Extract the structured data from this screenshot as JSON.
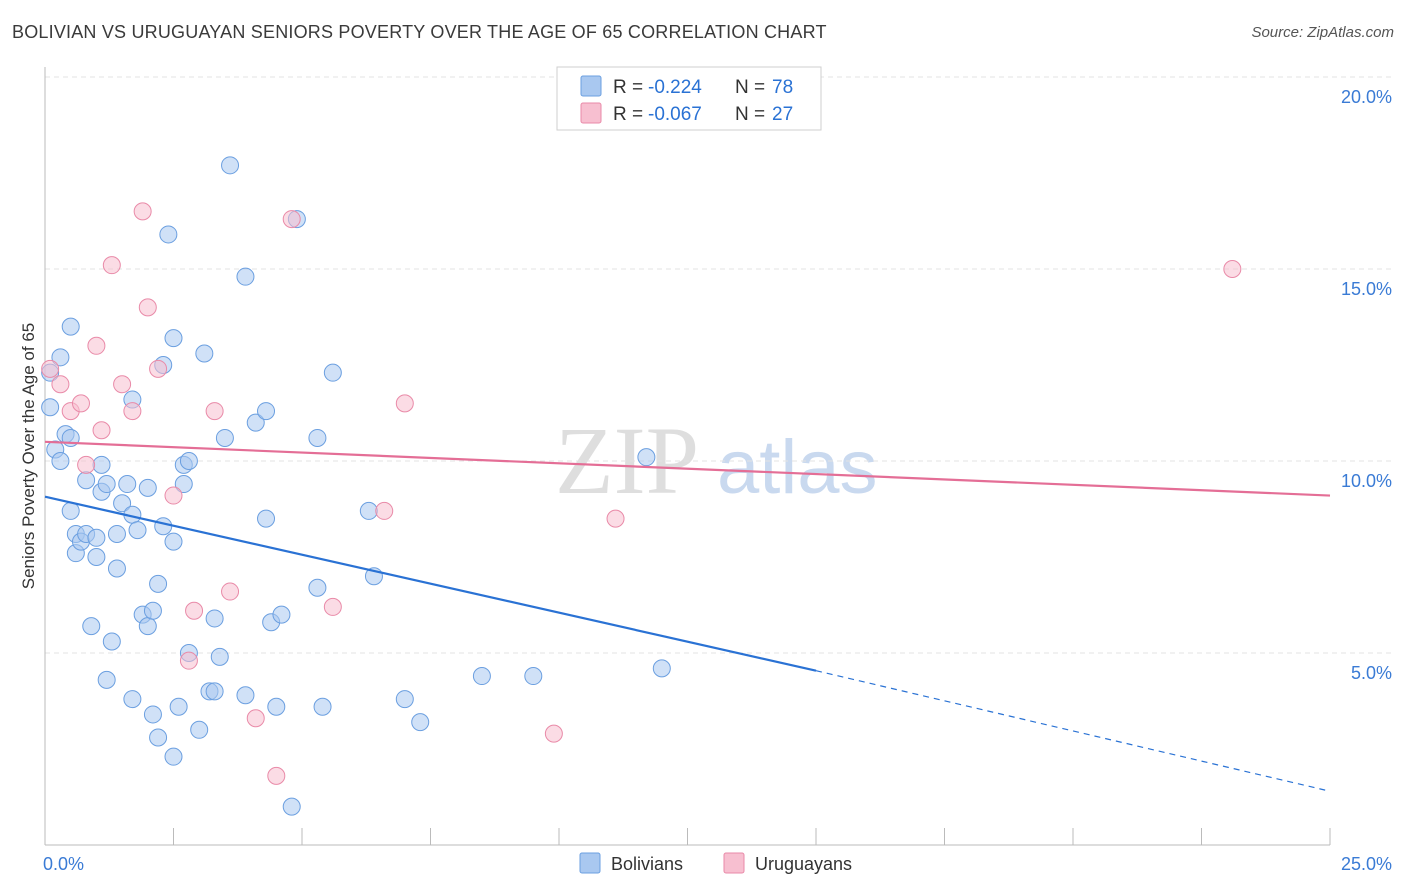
{
  "title": "BOLIVIAN VS URUGUAYAN SENIORS POVERTY OVER THE AGE OF 65 CORRELATION CHART",
  "source": "Source: ZipAtlas.com",
  "watermark": {
    "zip": "ZIP",
    "atlas": "atlas"
  },
  "legend_box": [
    {
      "r_label": "R = ",
      "r_value": "-0.224",
      "n_label": "N = ",
      "n_value": "78",
      "color": "#a9c8f0",
      "stroke": "#6b9fe0"
    },
    {
      "r_label": "R = ",
      "r_value": "-0.067",
      "n_label": "N = ",
      "n_value": "27",
      "color": "#f7bfd0",
      "stroke": "#e98aa8"
    }
  ],
  "bottom_legend": [
    {
      "label": "Bolivians",
      "color": "#a9c8f0",
      "stroke": "#6b9fe0"
    },
    {
      "label": "Uruguayans",
      "color": "#f7bfd0",
      "stroke": "#e98aa8"
    }
  ],
  "chart_data": {
    "type": "scatter",
    "title": "BOLIVIAN VS URUGUAYAN SENIORS POVERTY OVER THE AGE OF 65 CORRELATION CHART",
    "xlabel": "",
    "ylabel": "Seniors Poverty Over the Age of 65",
    "xlim": [
      0,
      25
    ],
    "ylim": [
      0,
      20
    ],
    "x_tick_labels": [
      "0.0%",
      "25.0%"
    ],
    "y_ticks": [
      5,
      10,
      15,
      20
    ],
    "y_tick_labels": [
      "5.0%",
      "10.0%",
      "15.0%",
      "20.0%"
    ],
    "x_minor_ticks": [
      2.5,
      5,
      7.5,
      10,
      12.5,
      15,
      17.5,
      20,
      22.5,
      25
    ],
    "grid": true,
    "legend_position": "top-center",
    "series": [
      {
        "name": "Bolivians",
        "color": "#a9c8f0",
        "stroke": "#6b9fe0",
        "line_color": "#2a72d4",
        "trend": {
          "x": [
            0,
            15
          ],
          "y": [
            9.07,
            4.54
          ],
          "dashed_to": [
            25,
            1.4
          ]
        },
        "points": [
          [
            0.1,
            12.3
          ],
          [
            0.1,
            11.4
          ],
          [
            0.2,
            10.3
          ],
          [
            0.3,
            12.7
          ],
          [
            0.3,
            10.0
          ],
          [
            0.4,
            10.7
          ],
          [
            0.5,
            10.6
          ],
          [
            0.5,
            13.5
          ],
          [
            0.5,
            8.7
          ],
          [
            0.6,
            7.6
          ],
          [
            0.6,
            8.1
          ],
          [
            0.7,
            7.9
          ],
          [
            0.8,
            9.5
          ],
          [
            0.8,
            8.1
          ],
          [
            0.9,
            5.7
          ],
          [
            1.0,
            8.0
          ],
          [
            1.0,
            7.5
          ],
          [
            1.1,
            9.9
          ],
          [
            1.1,
            9.2
          ],
          [
            1.2,
            9.4
          ],
          [
            1.2,
            4.3
          ],
          [
            1.3,
            5.3
          ],
          [
            1.4,
            8.1
          ],
          [
            1.4,
            7.2
          ],
          [
            1.5,
            8.9
          ],
          [
            1.6,
            9.4
          ],
          [
            1.7,
            11.6
          ],
          [
            1.7,
            3.8
          ],
          [
            1.7,
            8.6
          ],
          [
            1.8,
            8.2
          ],
          [
            1.9,
            6.0
          ],
          [
            2.0,
            5.7
          ],
          [
            2.0,
            9.3
          ],
          [
            2.1,
            3.4
          ],
          [
            2.1,
            6.1
          ],
          [
            2.2,
            2.8
          ],
          [
            2.2,
            6.8
          ],
          [
            2.3,
            8.3
          ],
          [
            2.3,
            12.5
          ],
          [
            2.4,
            15.9
          ],
          [
            2.5,
            7.9
          ],
          [
            2.5,
            2.3
          ],
          [
            2.5,
            13.2
          ],
          [
            2.6,
            3.6
          ],
          [
            2.7,
            9.9
          ],
          [
            2.7,
            9.4
          ],
          [
            2.8,
            10.0
          ],
          [
            2.8,
            5.0
          ],
          [
            3.0,
            3.0
          ],
          [
            3.1,
            12.8
          ],
          [
            3.2,
            4.0
          ],
          [
            3.3,
            5.9
          ],
          [
            3.3,
            4.0
          ],
          [
            3.4,
            4.9
          ],
          [
            3.5,
            10.6
          ],
          [
            3.6,
            17.7
          ],
          [
            3.9,
            14.8
          ],
          [
            3.9,
            3.9
          ],
          [
            4.1,
            11.0
          ],
          [
            4.3,
            11.3
          ],
          [
            4.3,
            8.5
          ],
          [
            4.4,
            5.8
          ],
          [
            4.5,
            3.6
          ],
          [
            4.6,
            6.0
          ],
          [
            4.8,
            1.0
          ],
          [
            4.9,
            16.3
          ],
          [
            5.3,
            10.6
          ],
          [
            5.3,
            6.7
          ],
          [
            5.4,
            3.6
          ],
          [
            5.6,
            12.3
          ],
          [
            6.3,
            8.7
          ],
          [
            6.4,
            7.0
          ],
          [
            7.0,
            3.8
          ],
          [
            7.3,
            3.2
          ],
          [
            8.5,
            4.4
          ],
          [
            9.5,
            4.4
          ],
          [
            11.7,
            10.1
          ],
          [
            12.0,
            4.6
          ]
        ]
      },
      {
        "name": "Uruguayans",
        "color": "#f7bfd0",
        "stroke": "#e98aa8",
        "line_color": "#e46e96",
        "trend": {
          "x": [
            0,
            25
          ],
          "y": [
            10.5,
            9.1
          ]
        },
        "points": [
          [
            0.1,
            12.4
          ],
          [
            0.3,
            12.0
          ],
          [
            0.5,
            11.3
          ],
          [
            0.7,
            11.5
          ],
          [
            0.8,
            9.9
          ],
          [
            1.0,
            13.0
          ],
          [
            1.1,
            10.8
          ],
          [
            1.3,
            15.1
          ],
          [
            1.5,
            12.0
          ],
          [
            1.7,
            11.3
          ],
          [
            1.9,
            16.5
          ],
          [
            2.0,
            14.0
          ],
          [
            2.2,
            12.4
          ],
          [
            2.5,
            9.1
          ],
          [
            2.8,
            4.8
          ],
          [
            2.9,
            6.1
          ],
          [
            3.3,
            11.3
          ],
          [
            3.6,
            6.6
          ],
          [
            4.1,
            3.3
          ],
          [
            4.5,
            1.8
          ],
          [
            4.8,
            16.3
          ],
          [
            5.6,
            6.2
          ],
          [
            6.6,
            8.7
          ],
          [
            7.0,
            11.5
          ],
          [
            9.9,
            2.9
          ],
          [
            11.1,
            8.5
          ],
          [
            23.1,
            15.0
          ]
        ]
      }
    ]
  }
}
